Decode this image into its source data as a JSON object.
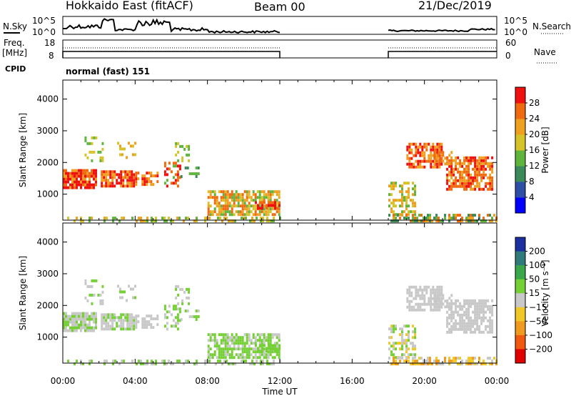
{
  "header": {
    "radar": "Hokkaido East (fitACF)",
    "beam": "Beam 00",
    "date": "21/Dec/2019"
  },
  "top_panels": {
    "nsky_label": "N.Sky",
    "nsearch_label": "N.Search",
    "noise_ticks": [
      "10^5",
      "10^0"
    ],
    "freq_label": "Freq.",
    "freq_unit": "[MHz]",
    "freq_ticks": [
      "18",
      "8"
    ],
    "nave_label": "Nave",
    "nave_ticks": [
      "60",
      "0"
    ],
    "cpid_label": "CPID",
    "cpid_value": "normal (fast) 151"
  },
  "chart_data": [
    {
      "type": "heatmap",
      "name": "power-panel",
      "ylabel": "Slant Range [km]",
      "ylim": [
        180,
        4600
      ],
      "yticks": [
        "1000",
        "2000",
        "3000",
        "4000"
      ],
      "xlim_hours": [
        0,
        24
      ],
      "colorbar_label": "Power [dB]",
      "colorbar_ticks": [
        "4",
        "8",
        "12",
        "16",
        "20",
        "24",
        "28"
      ],
      "colors": [
        "#0000ff",
        "#2e4fa8",
        "#3a8a5a",
        "#5fb43c",
        "#d6c32a",
        "#f0a020",
        "#f06a10",
        "#f01010"
      ]
    },
    {
      "type": "heatmap",
      "name": "velocity-panel",
      "ylabel": "Slant Range [km]",
      "ylim": [
        180,
        4600
      ],
      "yticks": [
        "1000",
        "2000",
        "3000",
        "4000"
      ],
      "xlim_hours": [
        0,
        24
      ],
      "colorbar_label": "Velocity [m s⁻¹]",
      "colorbar_ticks": [
        "200",
        "100",
        "50",
        "15",
        "−15",
        "−50",
        "−100",
        "−200"
      ],
      "colors": [
        "#1a2fa0",
        "#2f7a7a",
        "#3aa84a",
        "#74d034",
        "#c8c8c8",
        "#f0c828",
        "#f09a20",
        "#f05a10",
        "#e00000"
      ]
    }
  ],
  "time_axis": {
    "label": "Time UT",
    "ticks": [
      "00:00",
      "04:00",
      "08:00",
      "12:00",
      "16:00",
      "20:00",
      "00:00"
    ]
  }
}
